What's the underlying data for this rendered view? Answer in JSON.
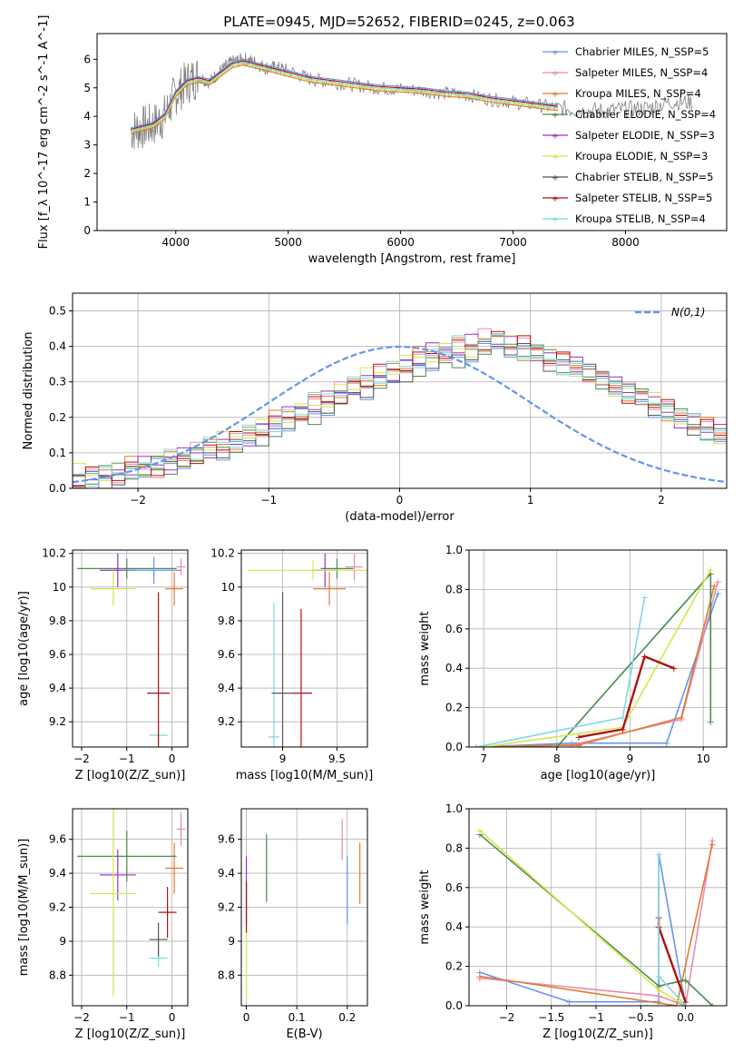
{
  "figure": {
    "title": "PLATE=0945, MJD=52652, FIBERID=0245, z=0.063"
  },
  "series_colors": [
    "#6495ed",
    "#e88ab0",
    "#e07b30",
    "#4a8a52",
    "#9b30c8",
    "#d4e64a",
    "#555555",
    "#b01010",
    "#7fd8e0"
  ],
  "chart_data": [
    {
      "type": "line",
      "id": "spectrum",
      "xlabel": "wavelength [Angstrom, rest frame]",
      "ylabel": "Flux [f_λ 10^-17 erg cm^-2 s^-1 A^-1]",
      "xlim": [
        3300,
        8900
      ],
      "ylim": [
        0,
        6.9
      ],
      "xticks": [
        4000,
        5000,
        6000,
        7000,
        8000
      ],
      "yticks": [
        0,
        1,
        2,
        3,
        4,
        5,
        6
      ],
      "legend_placement": "top-right",
      "data_color": "#808080",
      "data_description_points": {
        "x": [
          3600,
          3700,
          3800,
          3900,
          4000,
          4100,
          4200,
          4300,
          4400,
          4500,
          4600,
          4700,
          4800,
          4900,
          5000,
          5200,
          5400,
          5600,
          5800,
          6000,
          6200,
          6400,
          6600,
          6800,
          7000,
          7200,
          7400,
          7600,
          7800,
          8000,
          8200,
          8400,
          8600
        ],
        "y": [
          3.5,
          3.6,
          3.7,
          4.0,
          4.8,
          5.2,
          5.4,
          5.2,
          5.6,
          5.9,
          6.0,
          5.9,
          5.7,
          5.7,
          5.6,
          5.3,
          5.2,
          5.1,
          5.0,
          4.95,
          4.9,
          4.8,
          4.75,
          4.6,
          4.5,
          4.4,
          4.3,
          4.2,
          4.2,
          4.25,
          4.3,
          4.5,
          4.5
        ]
      },
      "model_points": {
        "x": [
          3600,
          3700,
          3800,
          3900,
          4000,
          4100,
          4200,
          4300,
          4400,
          4500,
          4600,
          4700,
          4800,
          4900,
          5000,
          5200,
          5400,
          5600,
          5800,
          6000,
          6200,
          6400,
          6600,
          6800,
          7000,
          7200,
          7400
        ],
        "y": [
          3.5,
          3.6,
          3.7,
          4.0,
          4.8,
          5.2,
          5.3,
          5.2,
          5.5,
          5.8,
          5.9,
          5.8,
          5.7,
          5.6,
          5.5,
          5.3,
          5.2,
          5.1,
          5.0,
          4.95,
          4.9,
          4.8,
          4.75,
          4.6,
          4.5,
          4.4,
          4.3
        ]
      },
      "legend": [
        "Chabrier MILES, N_SSP=5",
        "Salpeter MILES, N_SSP=4",
        "Kroupa MILES, N_SSP=4",
        "Chabrier ELODIE, N_SSP=4",
        "Salpeter ELODIE, N_SSP=3",
        "Kroupa ELODIE, N_SSP=3",
        "Chabrier STELIB, N_SSP=5",
        "Salpeter STELIB, N_SSP=5",
        "Kroupa STELIB, N_SSP=4"
      ]
    },
    {
      "type": "histogram",
      "id": "residuals",
      "xlabel": "(data-model)/error",
      "ylabel": "Normed distribution",
      "xlim": [
        -2.5,
        2.5
      ],
      "ylim": [
        0,
        0.55
      ],
      "xticks": [
        -2,
        -1,
        0,
        1,
        2
      ],
      "yticks": [
        0.0,
        0.1,
        0.2,
        0.3,
        0.4,
        0.5
      ],
      "grid": true,
      "legend_placement": "top-right",
      "normal_curve_label": "N(0,1)",
      "normal_curve_color": "#6495ed",
      "bin_edges_start": -2.5,
      "bin_width": 0.1,
      "series": [
        {
          "values": [
            0.03,
            0.03,
            0.04,
            0.04,
            0.05,
            0.05,
            0.06,
            0.07,
            0.08,
            0.09,
            0.1,
            0.11,
            0.12,
            0.14,
            0.15,
            0.17,
            0.18,
            0.2,
            0.21,
            0.23,
            0.25,
            0.27,
            0.28,
            0.3,
            0.31,
            0.33,
            0.34,
            0.35,
            0.36,
            0.37,
            0.38,
            0.39,
            0.4,
            0.4,
            0.39,
            0.38,
            0.36,
            0.35,
            0.34,
            0.32,
            0.31,
            0.29,
            0.27,
            0.25,
            0.23,
            0.22,
            0.2,
            0.18,
            0.16,
            0.15
          ]
        },
        {
          "values": [
            0.02,
            0.03,
            0.03,
            0.04,
            0.05,
            0.06,
            0.06,
            0.07,
            0.09,
            0.1,
            0.11,
            0.12,
            0.13,
            0.15,
            0.17,
            0.18,
            0.2,
            0.22,
            0.24,
            0.25,
            0.27,
            0.29,
            0.3,
            0.32,
            0.33,
            0.35,
            0.36,
            0.38,
            0.39,
            0.4,
            0.41,
            0.42,
            0.43,
            0.41,
            0.4,
            0.39,
            0.37,
            0.36,
            0.34,
            0.33,
            0.31,
            0.29,
            0.27,
            0.26,
            0.24,
            0.22,
            0.2,
            0.19,
            0.17,
            0.15
          ]
        },
        {
          "values": [
            0.04,
            0.03,
            0.04,
            0.05,
            0.06,
            0.06,
            0.07,
            0.08,
            0.09,
            0.1,
            0.12,
            0.13,
            0.14,
            0.16,
            0.17,
            0.19,
            0.21,
            0.22,
            0.24,
            0.26,
            0.28,
            0.29,
            0.31,
            0.32,
            0.34,
            0.35,
            0.37,
            0.38,
            0.39,
            0.4,
            0.4,
            0.41,
            0.41,
            0.4,
            0.39,
            0.38,
            0.37,
            0.35,
            0.34,
            0.32,
            0.3,
            0.29,
            0.27,
            0.25,
            0.24,
            0.22,
            0.2,
            0.18,
            0.17,
            0.15
          ]
        }
      ]
    },
    {
      "type": "scatter",
      "id": "age-vs-Z",
      "xlabel": "Z [log10(Z/Z_sun)]",
      "ylabel": "age [log10(age/yr)]",
      "xlim": [
        -2.2,
        0.35
      ],
      "ylim": [
        9.05,
        10.22
      ],
      "xticks": [
        -2,
        -1,
        0
      ],
      "yticks": [
        9.2,
        9.4,
        9.6,
        9.8,
        10.0,
        10.2
      ],
      "points": [
        {
          "x": -0.3,
          "y": 9.12,
          "xerr": 0.2,
          "yerr": 0.05,
          "c": 8
        },
        {
          "x": -0.3,
          "y": 9.37,
          "xerr": 0.25,
          "yerr": 0.6,
          "c": 7
        },
        {
          "x": 0.2,
          "y": 10.12,
          "xerr": 0.1,
          "yerr": 0.05,
          "c": 1
        },
        {
          "x": 0.05,
          "y": 9.99,
          "xerr": 0.2,
          "yerr": 0.1,
          "c": 2
        },
        {
          "x": -1.0,
          "y": 10.11,
          "xerr": 1.1,
          "yerr": 0.06,
          "c": 3
        },
        {
          "x": -1.2,
          "y": 10.1,
          "xerr": 0.4,
          "yerr": 0.1,
          "c": 4
        },
        {
          "x": -1.3,
          "y": 9.99,
          "xerr": 0.5,
          "yerr": 0.1,
          "c": 5
        },
        {
          "x": -0.4,
          "y": 10.1,
          "xerr": 0.6,
          "yerr": 0.08,
          "c": 0
        }
      ]
    },
    {
      "type": "scatter",
      "id": "age-vs-mass",
      "xlabel": "mass [log10(M/M_sun)]",
      "ylabel": "",
      "xlim": [
        8.62,
        9.78
      ],
      "ylim": [
        9.05,
        10.22
      ],
      "xticks": [
        9.0,
        9.5
      ],
      "yticks": [
        9.2,
        9.4,
        9.6,
        9.8,
        10.0,
        10.2
      ],
      "points": [
        {
          "x": 8.92,
          "y": 9.11,
          "xerr": 0.05,
          "yerr": 0.8,
          "c": 8
        },
        {
          "x": 9.17,
          "y": 9.37,
          "xerr": 0.1,
          "yerr": 0.5,
          "c": 7
        },
        {
          "x": 9.0,
          "y": 9.37,
          "xerr": 0.1,
          "yerr": 0.6,
          "c": 6
        },
        {
          "x": 9.66,
          "y": 10.12,
          "xerr": 0.08,
          "yerr": 0.08,
          "c": 1
        },
        {
          "x": 9.43,
          "y": 9.99,
          "xerr": 0.15,
          "yerr": 0.1,
          "c": 2
        },
        {
          "x": 9.5,
          "y": 10.11,
          "xerr": 0.15,
          "yerr": 0.06,
          "c": 3
        },
        {
          "x": 9.39,
          "y": 10.1,
          "xerr": 0.12,
          "yerr": 0.1,
          "c": 4
        },
        {
          "x": 9.28,
          "y": 10.1,
          "xerr": 0.6,
          "yerr": 0.06,
          "c": 5
        }
      ]
    },
    {
      "type": "line",
      "id": "weight-vs-age",
      "xlabel": "age [log10(age/yr)]",
      "ylabel": "mass weight",
      "xlim": [
        6.8,
        10.32
      ],
      "ylim": [
        0,
        1.0
      ],
      "xticks": [
        7,
        8,
        9,
        10
      ],
      "yticks": [
        0.0,
        0.2,
        0.4,
        0.6,
        0.8,
        1.0
      ],
      "series": [
        {
          "c": 0,
          "x": [
            6.9,
            8.2,
            9.5,
            10.2
          ],
          "y": [
            0.0,
            0.02,
            0.02,
            0.78
          ]
        },
        {
          "c": 1,
          "x": [
            7.0,
            8.2,
            9.7,
            10.2
          ],
          "y": [
            0.0,
            0.01,
            0.14,
            0.84
          ]
        },
        {
          "c": 2,
          "x": [
            6.9,
            8.3,
            9.7,
            10.15
          ],
          "y": [
            0.0,
            0.01,
            0.15,
            0.82
          ]
        },
        {
          "c": 3,
          "x": [
            8.0,
            10.1,
            10.1
          ],
          "y": [
            0.0,
            0.88,
            0.13
          ]
        },
        {
          "c": 5,
          "x": [
            7.0,
            8.9,
            10.1
          ],
          "y": [
            0.0,
            0.1,
            0.9
          ]
        },
        {
          "c": 7,
          "x": [
            8.3,
            8.9,
            9.2,
            9.6
          ],
          "y": [
            0.05,
            0.09,
            0.46,
            0.4
          ]
        },
        {
          "c": 8,
          "x": [
            6.9,
            8.9,
            9.2
          ],
          "y": [
            0.0,
            0.15,
            0.76
          ]
        }
      ]
    },
    {
      "type": "scatter",
      "id": "mass-vs-Z",
      "xlabel": "Z [log10(Z/Z_sun)]",
      "ylabel": "mass [log10(M/M_sun)]",
      "xlim": [
        -2.2,
        0.35
      ],
      "ylim": [
        8.62,
        9.78
      ],
      "xticks": [
        -2,
        -1,
        0
      ],
      "yticks": [
        8.8,
        9.0,
        9.2,
        9.4,
        9.6
      ],
      "points": [
        {
          "x": -0.3,
          "y": 8.9,
          "xerr": 0.2,
          "yerr": 0.05,
          "c": 8
        },
        {
          "x": -0.3,
          "y": 9.01,
          "xerr": 0.2,
          "yerr": 0.1,
          "c": 6
        },
        {
          "x": -0.1,
          "y": 9.17,
          "xerr": 0.2,
          "yerr": 0.15,
          "c": 7
        },
        {
          "x": 0.2,
          "y": 9.66,
          "xerr": 0.1,
          "yerr": 0.1,
          "c": 1
        },
        {
          "x": 0.05,
          "y": 9.43,
          "xerr": 0.2,
          "yerr": 0.15,
          "c": 2
        },
        {
          "x": -1.0,
          "y": 9.5,
          "xerr": 1.1,
          "yerr": 0.15,
          "c": 3
        },
        {
          "x": -1.2,
          "y": 9.39,
          "xerr": 0.4,
          "yerr": 0.15,
          "c": 4
        },
        {
          "x": -1.3,
          "y": 9.28,
          "xerr": 0.5,
          "yerr": 0.6,
          "c": 5
        }
      ]
    },
    {
      "type": "scatter",
      "id": "mass-vs-EBV",
      "xlabel": "E(B-V)",
      "ylabel": "",
      "xlim": [
        -0.01,
        0.24
      ],
      "ylim": [
        8.62,
        9.78
      ],
      "xticks": [
        0.0,
        0.1,
        0.2
      ],
      "yticks": [
        8.8,
        9.0,
        9.2,
        9.4,
        9.6
      ],
      "points": [
        {
          "x": 0.0,
          "y": 9.0,
          "xerr": 0,
          "yerr": 0.35,
          "c": 5
        },
        {
          "x": 0.0,
          "y": 9.3,
          "xerr": 0,
          "yerr": 0.2,
          "c": 4
        },
        {
          "x": 0.0,
          "y": 9.2,
          "xerr": 0,
          "yerr": 0.15,
          "c": 7
        },
        {
          "x": 0.04,
          "y": 9.43,
          "xerr": 0,
          "yerr": 0.2,
          "c": 3
        },
        {
          "x": 0.19,
          "y": 9.6,
          "xerr": 0,
          "yerr": 0.12,
          "c": 1
        },
        {
          "x": 0.2,
          "y": 9.3,
          "xerr": 0,
          "yerr": 0.2,
          "c": 0
        },
        {
          "x": 0.225,
          "y": 9.4,
          "xerr": 0,
          "yerr": 0.18,
          "c": 2
        }
      ]
    },
    {
      "type": "line",
      "id": "weight-vs-Z",
      "xlabel": "Z [log10(Z/Z_sun)]",
      "ylabel": "mass weight",
      "xlim": [
        -2.42,
        0.46
      ],
      "ylim": [
        0,
        1.0
      ],
      "xticks": [
        -2.0,
        -1.5,
        -1.0,
        -0.5,
        0.0
      ],
      "yticks": [
        0.0,
        0.2,
        0.4,
        0.6,
        0.8,
        1.0
      ],
      "series": [
        {
          "c": 0,
          "x": [
            -2.3,
            -1.3,
            -0.3,
            -0.3,
            0.0
          ],
          "y": [
            0.17,
            0.02,
            0.02,
            0.77,
            0.0
          ]
        },
        {
          "c": 1,
          "x": [
            -2.3,
            -0.3,
            0.0,
            0.3
          ],
          "y": [
            0.14,
            0.05,
            0.0,
            0.84
          ]
        },
        {
          "c": 2,
          "x": [
            -2.3,
            -0.1,
            0.3
          ],
          "y": [
            0.15,
            0.0,
            0.82
          ]
        },
        {
          "c": 3,
          "x": [
            -2.3,
            -0.3,
            0.0,
            0.3
          ],
          "y": [
            0.87,
            0.1,
            0.13,
            0.0
          ]
        },
        {
          "c": 5,
          "x": [
            -2.3,
            -0.3,
            0.0
          ],
          "y": [
            0.89,
            0.08,
            0.0
          ]
        },
        {
          "c": 7,
          "x": [
            -0.3,
            -0.3,
            0.0
          ],
          "y": [
            0.45,
            0.4,
            0.02
          ]
        },
        {
          "c": 8,
          "x": [
            -0.3,
            -0.3,
            0.0
          ],
          "y": [
            0.77,
            0.15,
            0.0
          ]
        }
      ]
    }
  ]
}
